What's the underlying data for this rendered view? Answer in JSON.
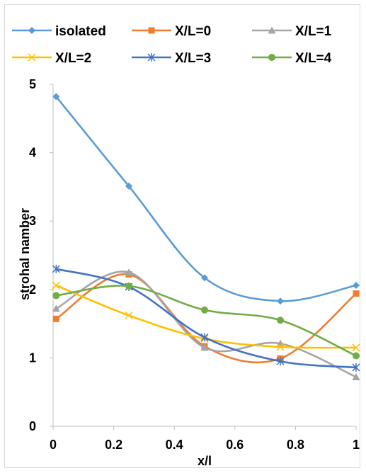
{
  "chart_data": {
    "type": "line",
    "title": "",
    "xlabel": "x/l",
    "ylabel": "strohal namber",
    "xlim": [
      0,
      1
    ],
    "ylim": [
      0,
      5
    ],
    "x_ticks": [
      "0",
      "0.2",
      "0.4",
      "0.6",
      "0.8",
      "1"
    ],
    "y_ticks": [
      "0",
      "1",
      "2",
      "3",
      "4",
      "5"
    ],
    "grid": false,
    "legend_position": "top",
    "x": [
      0.01,
      0.25,
      0.5,
      0.75,
      1.0
    ],
    "series": [
      {
        "name": "isolated",
        "color": "#5b9bd5",
        "marker": "diamond",
        "values": [
          4.82,
          3.51,
          2.17,
          1.83,
          2.06
        ]
      },
      {
        "name": "X/L=0",
        "color": "#ed7d31",
        "marker": "square",
        "values": [
          1.57,
          2.22,
          1.17,
          0.99,
          1.94
        ]
      },
      {
        "name": "X/L=1",
        "color": "#a5a5a5",
        "marker": "triangle",
        "values": [
          1.72,
          2.25,
          1.15,
          1.21,
          0.72
        ]
      },
      {
        "name": "X/L=2",
        "color": "#ffc000",
        "marker": "x",
        "values": [
          2.06,
          1.62,
          1.28,
          1.16,
          1.15
        ]
      },
      {
        "name": "X/L=3",
        "color": "#4472c4",
        "marker": "star",
        "values": [
          2.3,
          2.04,
          1.3,
          0.95,
          0.86
        ]
      },
      {
        "name": "X/L=4",
        "color": "#70ad47",
        "marker": "circle",
        "values": [
          1.91,
          2.05,
          1.7,
          1.55,
          1.03
        ]
      }
    ]
  }
}
